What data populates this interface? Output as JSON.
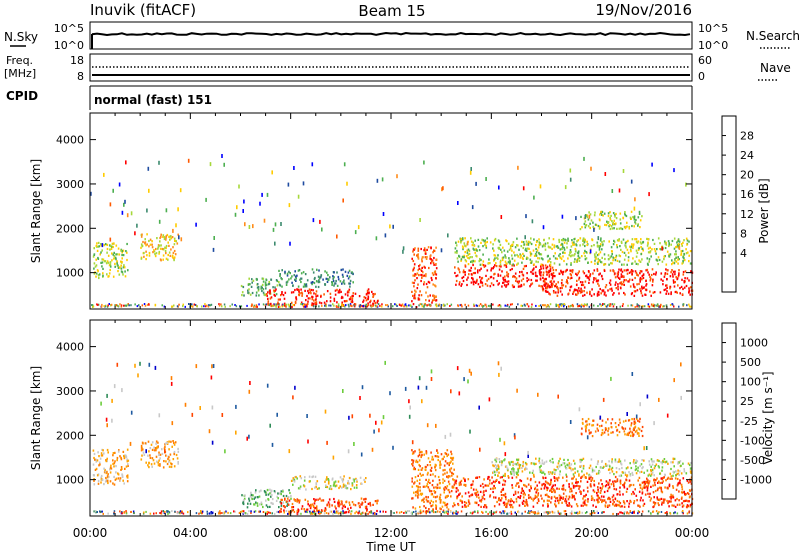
{
  "header": {
    "station": "Inuvik (fitACF)",
    "beam": "Beam 15",
    "date": "19/Nov/2016"
  },
  "strips": {
    "nsky": {
      "left_label": "N.Sky",
      "right_label": "N.Search",
      "left_ticks": [
        "10^5",
        "10^0"
      ],
      "right_ticks": [
        "10^5",
        "10^0"
      ]
    },
    "freq": {
      "left_label_1": "Freq.",
      "left_label_2": "[MHz]",
      "right_label": "Nave",
      "left_ticks": [
        "18",
        "8"
      ],
      "right_ticks": [
        "60",
        "0"
      ]
    },
    "cpid": {
      "left_label": "CPID",
      "value": "normal (fast) 151"
    }
  },
  "colors": {
    "power": [
      "#0000ff",
      "#1e4ba0",
      "#3c8a6e",
      "#4caf50",
      "#a6d83a",
      "#ffcc00",
      "#ff8c1a",
      "#ff5a00",
      "#ff0000"
    ],
    "velocity": [
      "#ff0000",
      "#ff4500",
      "#ff7f00",
      "#ffa500",
      "#c8c8c8",
      "#6ccc3c",
      "#2e8b57",
      "#1e5aa0",
      "#0000cc"
    ]
  },
  "chart_data": [
    {
      "type": "heatmap",
      "title": "",
      "xlabel": "",
      "ylabel": "Slant Range [km]",
      "xlim": [
        "00:00",
        "00:00"
      ],
      "ylim": [
        180,
        4600
      ],
      "x_ticks": [
        "00:00",
        "04:00",
        "08:00",
        "12:00",
        "16:00",
        "20:00",
        "00:00"
      ],
      "y_ticks": [
        1000,
        2000,
        3000,
        4000
      ],
      "colorbar": {
        "label": "Power [dB]",
        "ticks": [
          "28",
          "24",
          "20",
          "16",
          "12",
          "8",
          "4"
        ]
      },
      "regions": [
        {
          "t": [
            0.1,
            1.5
          ],
          "r": [
            900,
            1700
          ],
          "level": 4
        },
        {
          "t": [
            2.0,
            3.5
          ],
          "r": [
            1300,
            1900
          ],
          "level": 5
        },
        {
          "t": [
            6.0,
            7.5
          ],
          "r": [
            500,
            900
          ],
          "level": 3
        },
        {
          "t": [
            7.0,
            11.5
          ],
          "r": [
            250,
            650
          ],
          "level": 8
        },
        {
          "t": [
            7.5,
            10.5
          ],
          "r": [
            700,
            1100
          ],
          "level": 2
        },
        {
          "t": [
            12.8,
            13.8
          ],
          "r": [
            300,
            1600
          ],
          "level": 7
        },
        {
          "t": [
            14.5,
            18.5
          ],
          "r": [
            700,
            1200
          ],
          "level": 8
        },
        {
          "t": [
            18.0,
            24.0
          ],
          "r": [
            500,
            1100
          ],
          "level": 8
        },
        {
          "t": [
            14.5,
            24.0
          ],
          "r": [
            1200,
            1800
          ],
          "level": 4
        },
        {
          "t": [
            19.5,
            22.0
          ],
          "r": [
            2000,
            2400
          ],
          "level": 4
        }
      ]
    },
    {
      "type": "heatmap",
      "title": "",
      "xlabel": "Time UT",
      "ylabel": "Slant Range [km]",
      "xlim": [
        "00:00",
        "00:00"
      ],
      "ylim": [
        180,
        4600
      ],
      "x_ticks": [
        "00:00",
        "04:00",
        "08:00",
        "12:00",
        "16:00",
        "20:00",
        "00:00"
      ],
      "y_ticks": [
        1000,
        2000,
        3000,
        4000
      ],
      "colorbar": {
        "label": "Velocity [m s⁻¹]",
        "ticks": [
          "1000",
          "500",
          "100",
          "25",
          "-25",
          "-100",
          "-500",
          "-1000"
        ]
      },
      "regions": [
        {
          "t": [
            0.1,
            1.5
          ],
          "r": [
            900,
            1700
          ],
          "level": 3
        },
        {
          "t": [
            2.0,
            3.5
          ],
          "r": [
            1300,
            1900
          ],
          "level": 3
        },
        {
          "t": [
            6.0,
            8.0
          ],
          "r": [
            400,
            800
          ],
          "level": 5
        },
        {
          "t": [
            7.5,
            11.5
          ],
          "r": [
            250,
            600
          ],
          "level": 1
        },
        {
          "t": [
            8.0,
            11.0
          ],
          "r": [
            800,
            1100
          ],
          "level": 4
        },
        {
          "t": [
            12.8,
            14.5
          ],
          "r": [
            300,
            1700
          ],
          "level": 2
        },
        {
          "t": [
            14.5,
            24.0
          ],
          "r": [
            400,
            1100
          ],
          "level": 1
        },
        {
          "t": [
            16.0,
            24.0
          ],
          "r": [
            1100,
            1500
          ],
          "level": 4
        },
        {
          "t": [
            19.5,
            22.0
          ],
          "r": [
            2000,
            2400
          ],
          "level": 2
        }
      ]
    }
  ]
}
